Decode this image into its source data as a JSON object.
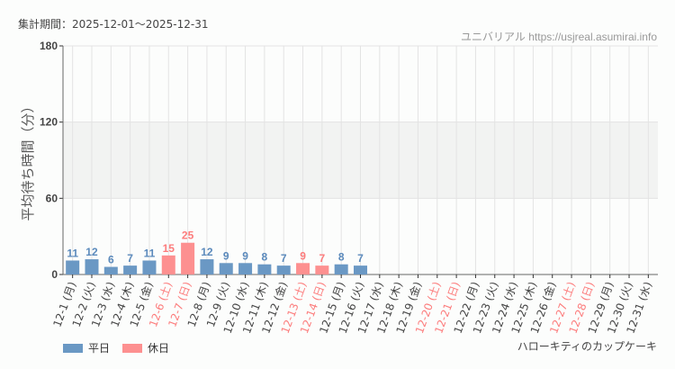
{
  "header": {
    "period": "集計期間：2025-12-01～2025-12-31",
    "site": "ユニバリアル  https://usjreal.asumirai.info"
  },
  "footer": {
    "attraction": "ハローキティのカップケーキ"
  },
  "colors": {
    "weekday": "#6a98c4",
    "holiday": "#fd9090",
    "holiday_text": "#fc7c7c",
    "weekday_text": "#5b8abc"
  },
  "chart_data": {
    "type": "bar",
    "ylabel": "平均待ち時間（分）",
    "ylim": [
      0,
      180
    ],
    "yticks": [
      0,
      60,
      120,
      180
    ],
    "grid": true,
    "legend": "bottom-left",
    "series": [
      {
        "name": "平日"
      },
      {
        "name": "休日"
      }
    ],
    "categories": [
      "12-1 (月)",
      "12-2 (火)",
      "12-3 (水)",
      "12-4 (木)",
      "12-5 (金)",
      "12-6 (土)",
      "12-7 (日)",
      "12-8 (月)",
      "12-9 (火)",
      "12-10 (水)",
      "12-11 (木)",
      "12-12 (金)",
      "12-13 (土)",
      "12-14 (日)",
      "12-15 (月)",
      "12-16 (火)",
      "12-17 (水)",
      "12-18 (木)",
      "12-19 (金)",
      "12-20 (土)",
      "12-21 (日)",
      "12-22 (月)",
      "12-23 (火)",
      "12-24 (水)",
      "12-25 (木)",
      "12-26 (金)",
      "12-27 (土)",
      "12-28 (日)",
      "12-29 (月)",
      "12-30 (火)",
      "12-31 (水)"
    ],
    "holiday": [
      false,
      false,
      false,
      false,
      false,
      true,
      true,
      false,
      false,
      false,
      false,
      false,
      true,
      true,
      false,
      false,
      false,
      false,
      false,
      true,
      true,
      false,
      false,
      false,
      false,
      false,
      true,
      true,
      false,
      false,
      false
    ],
    "values": [
      11,
      12,
      6,
      7,
      11,
      15,
      25,
      12,
      9,
      9,
      8,
      7,
      9,
      7,
      8,
      7,
      null,
      null,
      null,
      null,
      null,
      null,
      null,
      null,
      null,
      null,
      null,
      null,
      null,
      null,
      null
    ]
  }
}
